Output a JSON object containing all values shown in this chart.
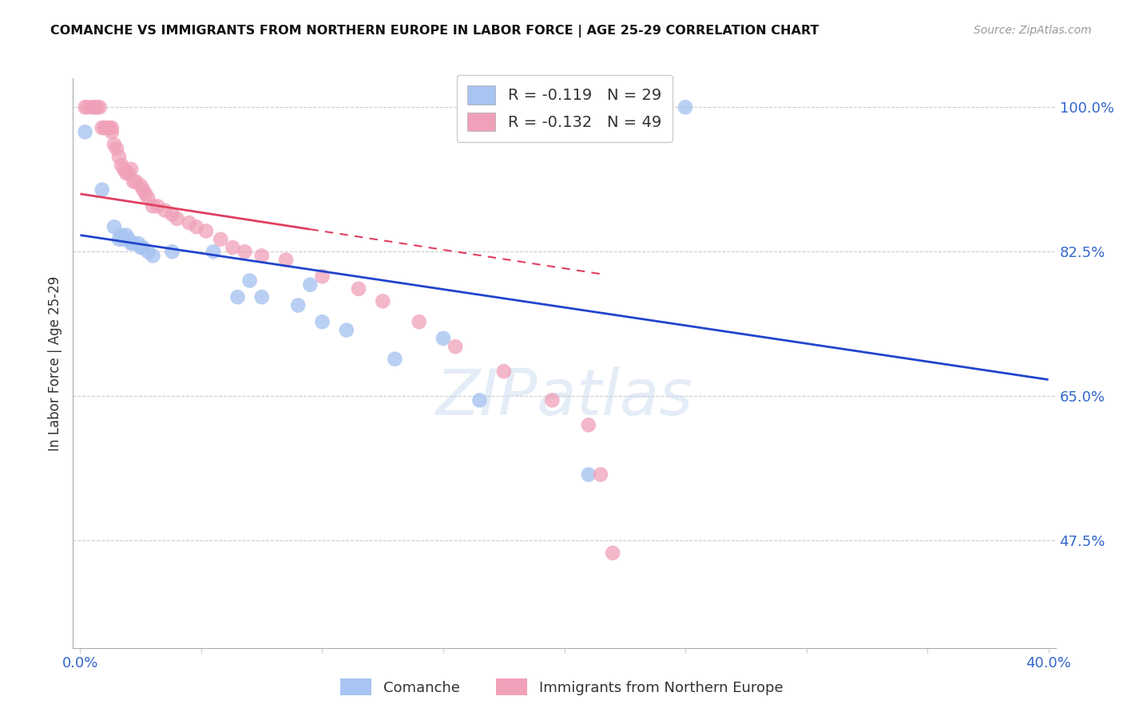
{
  "title": "COMANCHE VS IMMIGRANTS FROM NORTHERN EUROPE IN LABOR FORCE | AGE 25-29 CORRELATION CHART",
  "source": "Source: ZipAtlas.com",
  "ylabel": "In Labor Force | Age 25-29",
  "r_comanche": -0.119,
  "n_comanche": 29,
  "r_immigrants": -0.132,
  "n_immigrants": 49,
  "xlim": [
    -0.003,
    0.403
  ],
  "ylim": [
    0.345,
    1.035
  ],
  "yticks": [
    1.0,
    0.825,
    0.65,
    0.475
  ],
  "ytick_labels": [
    "100.0%",
    "82.5%",
    "65.0%",
    "47.5%"
  ],
  "xtick_vals": [
    0.0,
    0.05,
    0.1,
    0.15,
    0.2,
    0.25,
    0.3,
    0.35,
    0.4
  ],
  "xtick_labels": [
    "0.0%",
    "",
    "",
    "",
    "",
    "",
    "",
    "",
    "40.0%"
  ],
  "color_comanche": "#a8c4f0",
  "color_immigrants": "#f0a0b8",
  "line_color_comanche": "#2244cc",
  "line_color_immigrants": "#e04060",
  "watermark_zip": "ZIP",
  "watermark_atlas": "atlas",
  "legend_label_comanche": "Comanche",
  "legend_label_immigrants": "Immigrants from Northern Europe",
  "comanche_x": [
    0.002,
    0.009,
    0.014,
    0.016,
    0.017,
    0.018,
    0.019,
    0.02,
    0.021,
    0.022,
    0.024,
    0.025,
    0.026,
    0.028,
    0.03,
    0.038,
    0.055,
    0.065,
    0.07,
    0.075,
    0.09,
    0.095,
    0.1,
    0.11,
    0.13,
    0.15,
    0.165,
    0.21,
    0.25
  ],
  "comanche_y": [
    0.97,
    0.9,
    0.855,
    0.84,
    0.845,
    0.84,
    0.845,
    0.84,
    0.835,
    0.835,
    0.835,
    0.83,
    0.83,
    0.825,
    0.82,
    0.825,
    0.825,
    0.77,
    0.79,
    0.77,
    0.76,
    0.785,
    0.74,
    0.73,
    0.695,
    0.72,
    0.645,
    0.555,
    1.0
  ],
  "immigrants_x": [
    0.002,
    0.003,
    0.005,
    0.006,
    0.007,
    0.008,
    0.009,
    0.01,
    0.011,
    0.012,
    0.013,
    0.013,
    0.014,
    0.015,
    0.016,
    0.017,
    0.018,
    0.019,
    0.02,
    0.021,
    0.022,
    0.023,
    0.025,
    0.026,
    0.027,
    0.028,
    0.03,
    0.032,
    0.035,
    0.038,
    0.04,
    0.045,
    0.048,
    0.052,
    0.058,
    0.063,
    0.068,
    0.075,
    0.085,
    0.1,
    0.115,
    0.125,
    0.14,
    0.155,
    0.175,
    0.195,
    0.21,
    0.215,
    0.22
  ],
  "immigrants_y": [
    1.0,
    1.0,
    1.0,
    1.0,
    1.0,
    1.0,
    0.975,
    0.975,
    0.975,
    0.975,
    0.975,
    0.97,
    0.955,
    0.95,
    0.94,
    0.93,
    0.925,
    0.92,
    0.92,
    0.925,
    0.91,
    0.91,
    0.905,
    0.9,
    0.895,
    0.89,
    0.88,
    0.88,
    0.875,
    0.87,
    0.865,
    0.86,
    0.855,
    0.85,
    0.84,
    0.83,
    0.825,
    0.82,
    0.815,
    0.795,
    0.78,
    0.765,
    0.74,
    0.71,
    0.68,
    0.645,
    0.615,
    0.555,
    0.46
  ],
  "trend_comanche_x0": 0.0,
  "trend_comanche_x1": 0.4,
  "trend_comanche_y0": 0.845,
  "trend_comanche_y1": 0.67,
  "trend_immigrants_x0": 0.0,
  "trend_immigrants_x1": 0.215,
  "trend_immigrants_y0": 0.895,
  "trend_immigrants_y1": 0.798
}
